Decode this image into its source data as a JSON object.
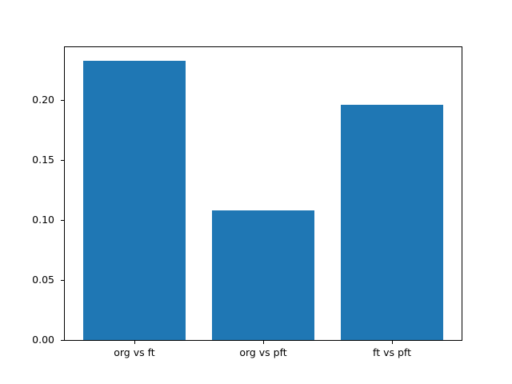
{
  "chart_data": {
    "type": "bar",
    "categories": [
      "org vs ft",
      "org vs pft",
      "ft vs pft"
    ],
    "values": [
      0.232,
      0.108,
      0.196
    ],
    "title": "",
    "xlabel": "",
    "ylabel": "",
    "ylim": [
      0,
      0.2436
    ],
    "xlim": [
      -0.54,
      2.54
    ],
    "bar_width": 0.8,
    "yticks": [
      0.0,
      0.05,
      0.1,
      0.15,
      0.2
    ],
    "ytick_labels": [
      "0.00",
      "0.05",
      "0.10",
      "0.15",
      "0.20"
    ],
    "grid": false,
    "legend": null,
    "colors": {
      "bar": "#1f77b4",
      "spine": "#000000",
      "text": "#000000",
      "background": "#ffffff"
    }
  }
}
